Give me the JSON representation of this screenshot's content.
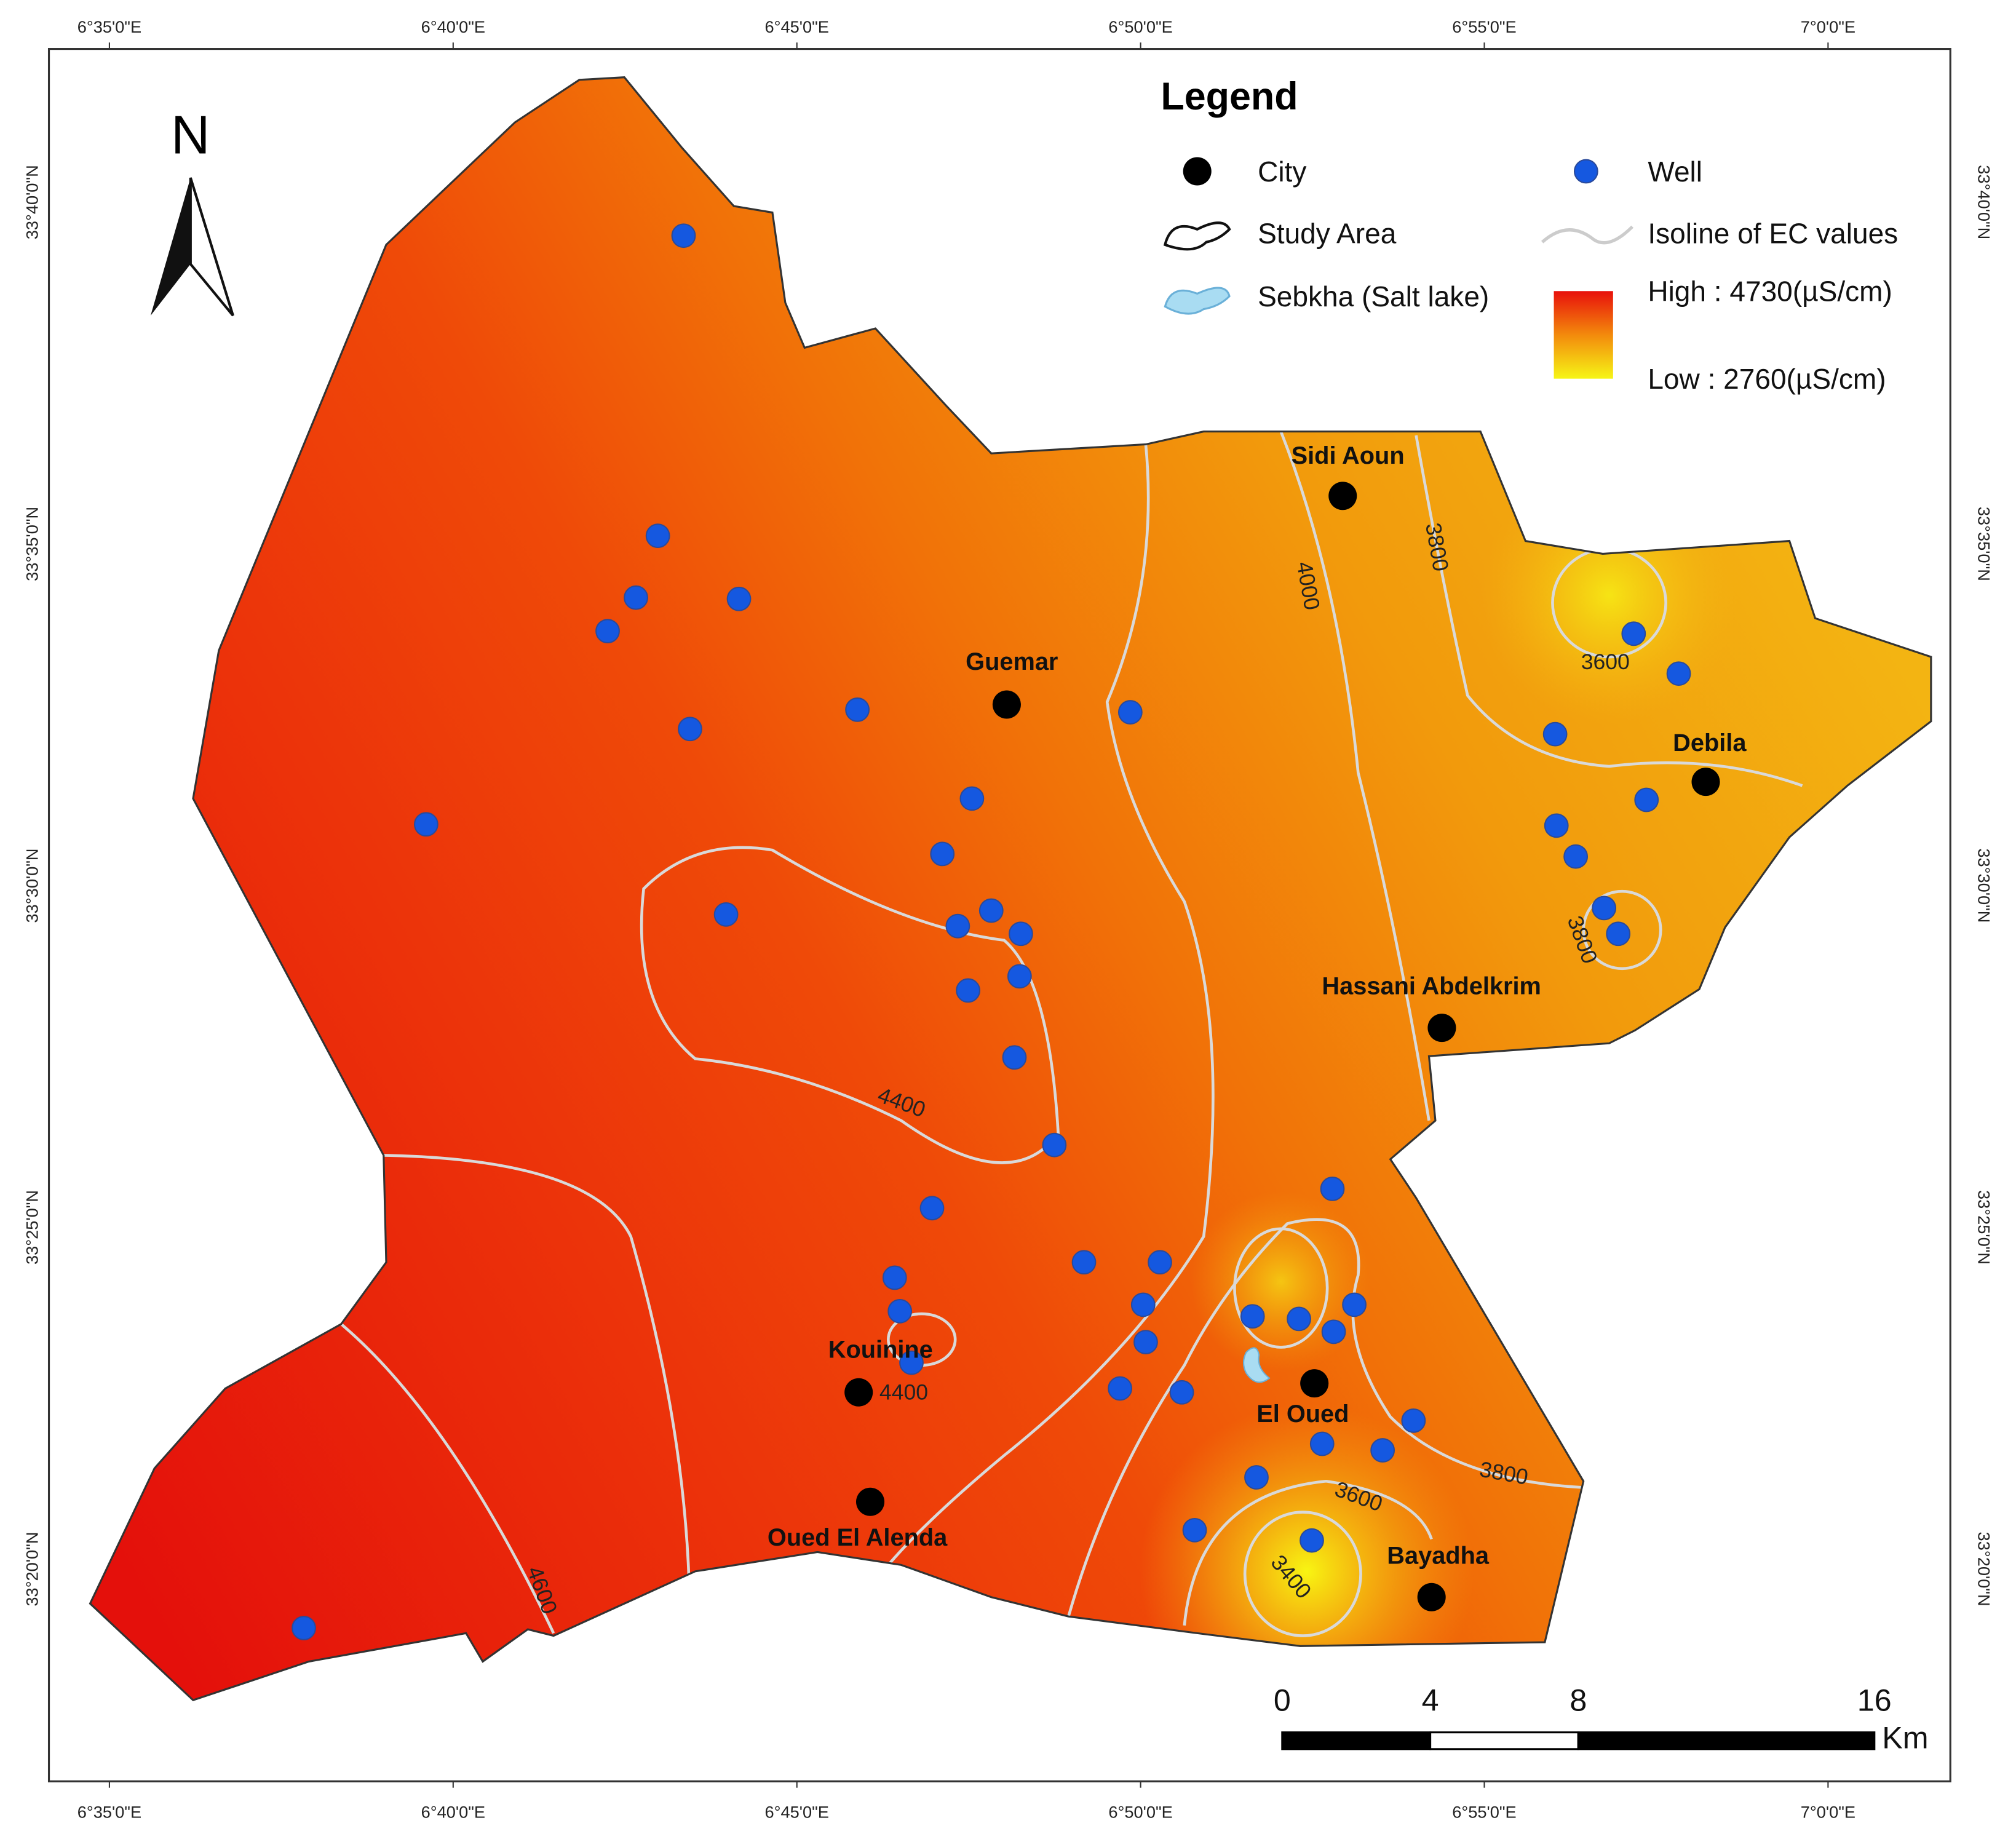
{
  "map": {
    "longitude_labels": [
      "6°35'0\"E",
      "6°40'0\"E",
      "6°45'0\"E",
      "6°50'0\"E",
      "6°55'0\"E",
      "7°0'0\"E"
    ],
    "latitude_labels": [
      "33°40'0\"N",
      "33°35'0\"N",
      "33°30'0\"N",
      "33°25'0\"N",
      "33°20'0\"N"
    ],
    "north": "N",
    "legend": {
      "title": "Legend",
      "items": [
        "City",
        "Well",
        "Study Area",
        "Isoline of EC values",
        "Sebkha (Salt lake)"
      ],
      "high": "High : 4730(µS/cm)",
      "low": "Low : 2760(µS/cm)"
    },
    "cities": [
      "Sidi Aoun",
      "Guemar",
      "Debila",
      "Hassani Abdelkrim",
      "Kouinine",
      "El Oued",
      "Oued El Alenda",
      "Bayadha"
    ],
    "isoline_labels": [
      3800,
      4000,
      3600,
      3800,
      4400,
      4400,
      3800,
      3600,
      3400,
      4600
    ],
    "scale": {
      "ticks": [
        0,
        4,
        8,
        16
      ],
      "unit": "Km"
    }
  }
}
